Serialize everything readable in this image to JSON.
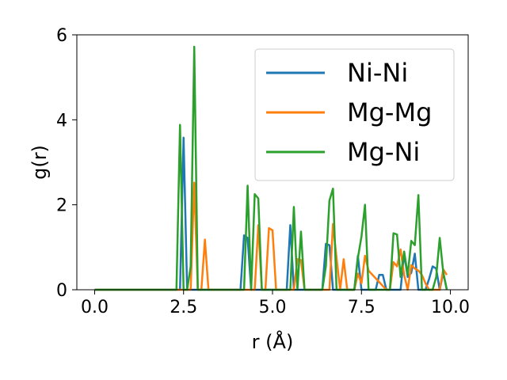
{
  "chart_data": {
    "type": "line",
    "xlabel": "r (Å)",
    "ylabel": "g(r)",
    "xlim": [
      -0.5,
      10.5
    ],
    "ylim": [
      0,
      6
    ],
    "xticks": [
      0.0,
      2.5,
      5.0,
      7.5,
      10.0
    ],
    "xtick_labels": [
      "0.0",
      "2.5",
      "5.0",
      "7.5",
      "10.0"
    ],
    "yticks": [
      0,
      2,
      4,
      6
    ],
    "ytick_labels": [
      "0",
      "2",
      "4",
      "6"
    ],
    "grid": false,
    "legend_position": "top-right",
    "series": [
      {
        "name": "Ni-Ni",
        "color": "#1f77b4",
        "x": [
          0.0,
          2.3,
          2.4,
          2.5,
          2.6,
          4.1,
          4.2,
          4.3,
          4.4,
          5.4,
          5.5,
          5.6,
          5.7,
          6.4,
          6.5,
          6.6,
          6.7,
          7.2,
          7.3,
          7.4,
          7.5,
          7.6,
          7.9,
          8.0,
          8.1,
          8.2,
          8.3,
          8.6,
          8.7,
          8.8,
          8.9,
          9.0,
          9.1,
          9.2,
          9.3,
          9.4,
          9.5,
          9.6,
          9.7,
          9.8,
          9.9
        ],
        "y": [
          0.0,
          0.0,
          0.0,
          3.58,
          0.0,
          0.0,
          1.28,
          1.22,
          0.0,
          0.0,
          1.52,
          0.0,
          0.0,
          0.0,
          1.08,
          1.05,
          0.0,
          0.0,
          0.0,
          0.8,
          0.0,
          0.0,
          0.0,
          0.35,
          0.35,
          0.0,
          0.0,
          0.0,
          0.85,
          0.3,
          0.4,
          0.85,
          0.0,
          0.0,
          0.0,
          0.25,
          0.55,
          0.5,
          0.0,
          0.4,
          0.0
        ]
      },
      {
        "name": "Mg-Mg",
        "color": "#ff7f0e",
        "x": [
          0.0,
          2.7,
          2.8,
          2.9,
          3.0,
          3.1,
          3.2,
          4.4,
          4.5,
          4.6,
          4.7,
          4.8,
          4.9,
          5.0,
          5.1,
          5.6,
          5.7,
          5.8,
          5.9,
          6.6,
          6.7,
          6.8,
          6.9,
          7.0,
          7.1,
          7.3,
          7.4,
          7.5,
          7.6,
          7.7,
          8.2,
          8.3,
          8.4,
          8.5,
          8.6,
          8.7,
          8.8,
          8.9,
          9.0,
          9.1,
          9.2,
          9.3,
          9.4,
          9.5,
          9.6,
          9.7,
          9.8,
          9.9
        ],
        "y": [
          0.0,
          0.0,
          2.52,
          0.0,
          0.0,
          1.18,
          0.0,
          0.0,
          0.0,
          1.52,
          0.0,
          0.0,
          1.45,
          1.4,
          0.0,
          0.0,
          0.72,
          0.7,
          0.0,
          0.0,
          1.55,
          0.75,
          0.0,
          0.72,
          0.0,
          0.0,
          0.38,
          0.15,
          0.8,
          0.45,
          0.0,
          0.0,
          0.65,
          0.55,
          0.95,
          0.35,
          0.0,
          0.58,
          0.5,
          0.45,
          0.35,
          0.15,
          0.0,
          0.0,
          0.0,
          0.0,
          0.48,
          0.35
        ]
      },
      {
        "name": "Mg-Ni",
        "color": "#2ca02c",
        "x": [
          0.0,
          2.3,
          2.4,
          2.5,
          2.6,
          2.7,
          2.8,
          2.9,
          4.2,
          4.3,
          4.4,
          4.5,
          4.6,
          4.7,
          5.5,
          5.6,
          5.7,
          5.8,
          5.9,
          6.4,
          6.5,
          6.6,
          6.7,
          6.8,
          7.3,
          7.4,
          7.5,
          7.6,
          7.7,
          8.3,
          8.4,
          8.5,
          8.6,
          8.7,
          8.8,
          8.9,
          9.0,
          9.1,
          9.2,
          9.3,
          9.4,
          9.5,
          9.6,
          9.7,
          9.8,
          9.9
        ],
        "y": [
          0.0,
          0.0,
          3.88,
          0.0,
          0.0,
          0.55,
          5.72,
          0.0,
          0.0,
          2.45,
          0.0,
          2.25,
          2.15,
          0.0,
          0.0,
          1.95,
          0.0,
          1.37,
          0.0,
          0.0,
          0.55,
          2.1,
          2.38,
          0.0,
          0.0,
          0.75,
          1.25,
          2.0,
          0.0,
          0.0,
          1.33,
          1.3,
          0.3,
          0.9,
          0.35,
          1.15,
          1.05,
          2.23,
          0.0,
          0.0,
          0.0,
          0.0,
          0.3,
          1.22,
          0.4,
          0.0
        ]
      }
    ]
  }
}
